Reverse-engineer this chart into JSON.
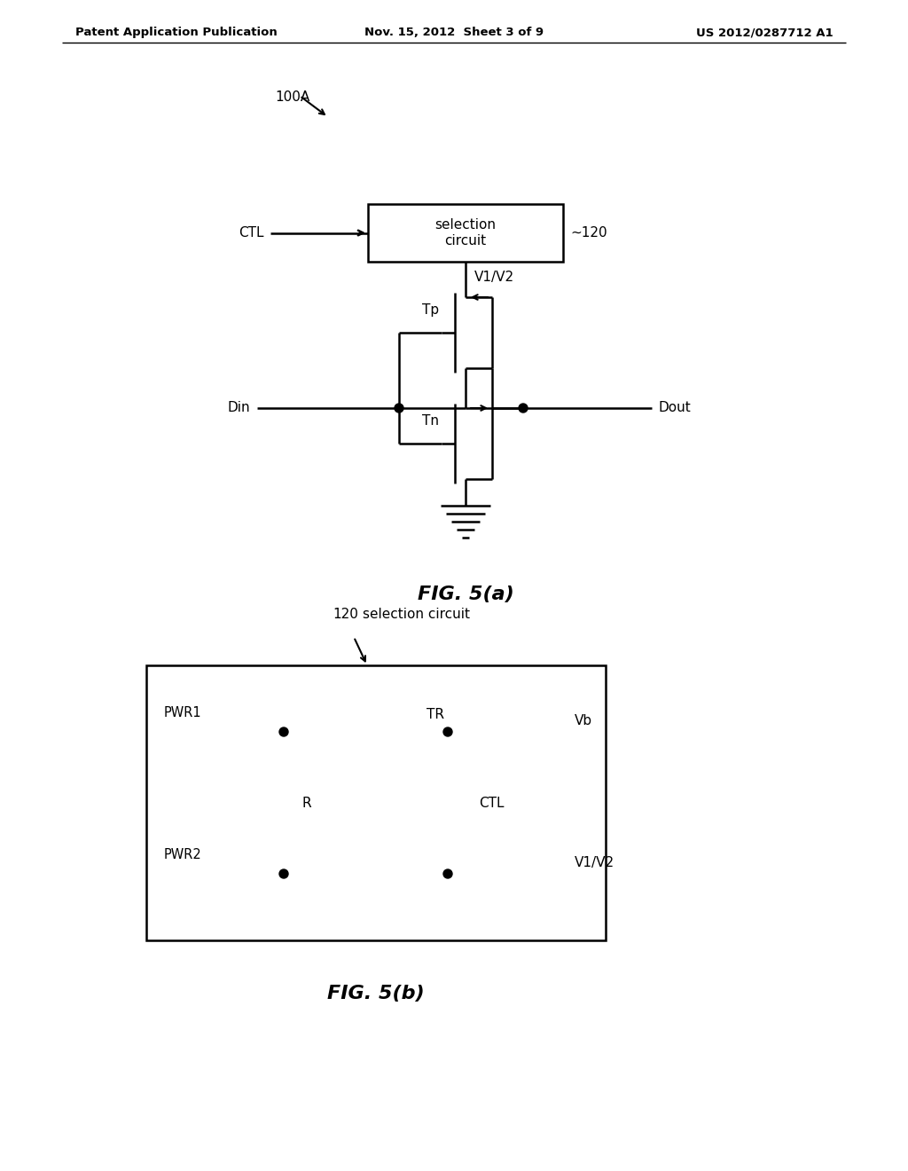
{
  "bg_color": "#ffffff",
  "header_left": "Patent Application Publication",
  "header_mid": "Nov. 15, 2012  Sheet 3 of 9",
  "header_right": "US 2012/0287712 A1",
  "fig5a_label": "FIG. 5(a)",
  "fig5b_label": "FIG. 5(b)",
  "label_100A": "100A",
  "label_CTL": "CTL",
  "label_120": "~120",
  "label_selection_circuit": "selection\ncircuit",
  "label_V1V2_top": "V1/V2",
  "label_Tp": "Tp",
  "label_Din": "Din",
  "label_Dout": "Dout",
  "label_Tn": "Tn",
  "label_120b": "120",
  "label_selection_circuit_b": "selection circuit",
  "label_PWR1": "PWR1",
  "label_Vb": "Vb",
  "label_R": "R",
  "label_TR": "TR",
  "label_CTL_b": "CTL",
  "label_PWR2": "PWR2",
  "label_V1V2_bot": "V1/V2",
  "line_color": "#000000",
  "line_width": 1.8
}
